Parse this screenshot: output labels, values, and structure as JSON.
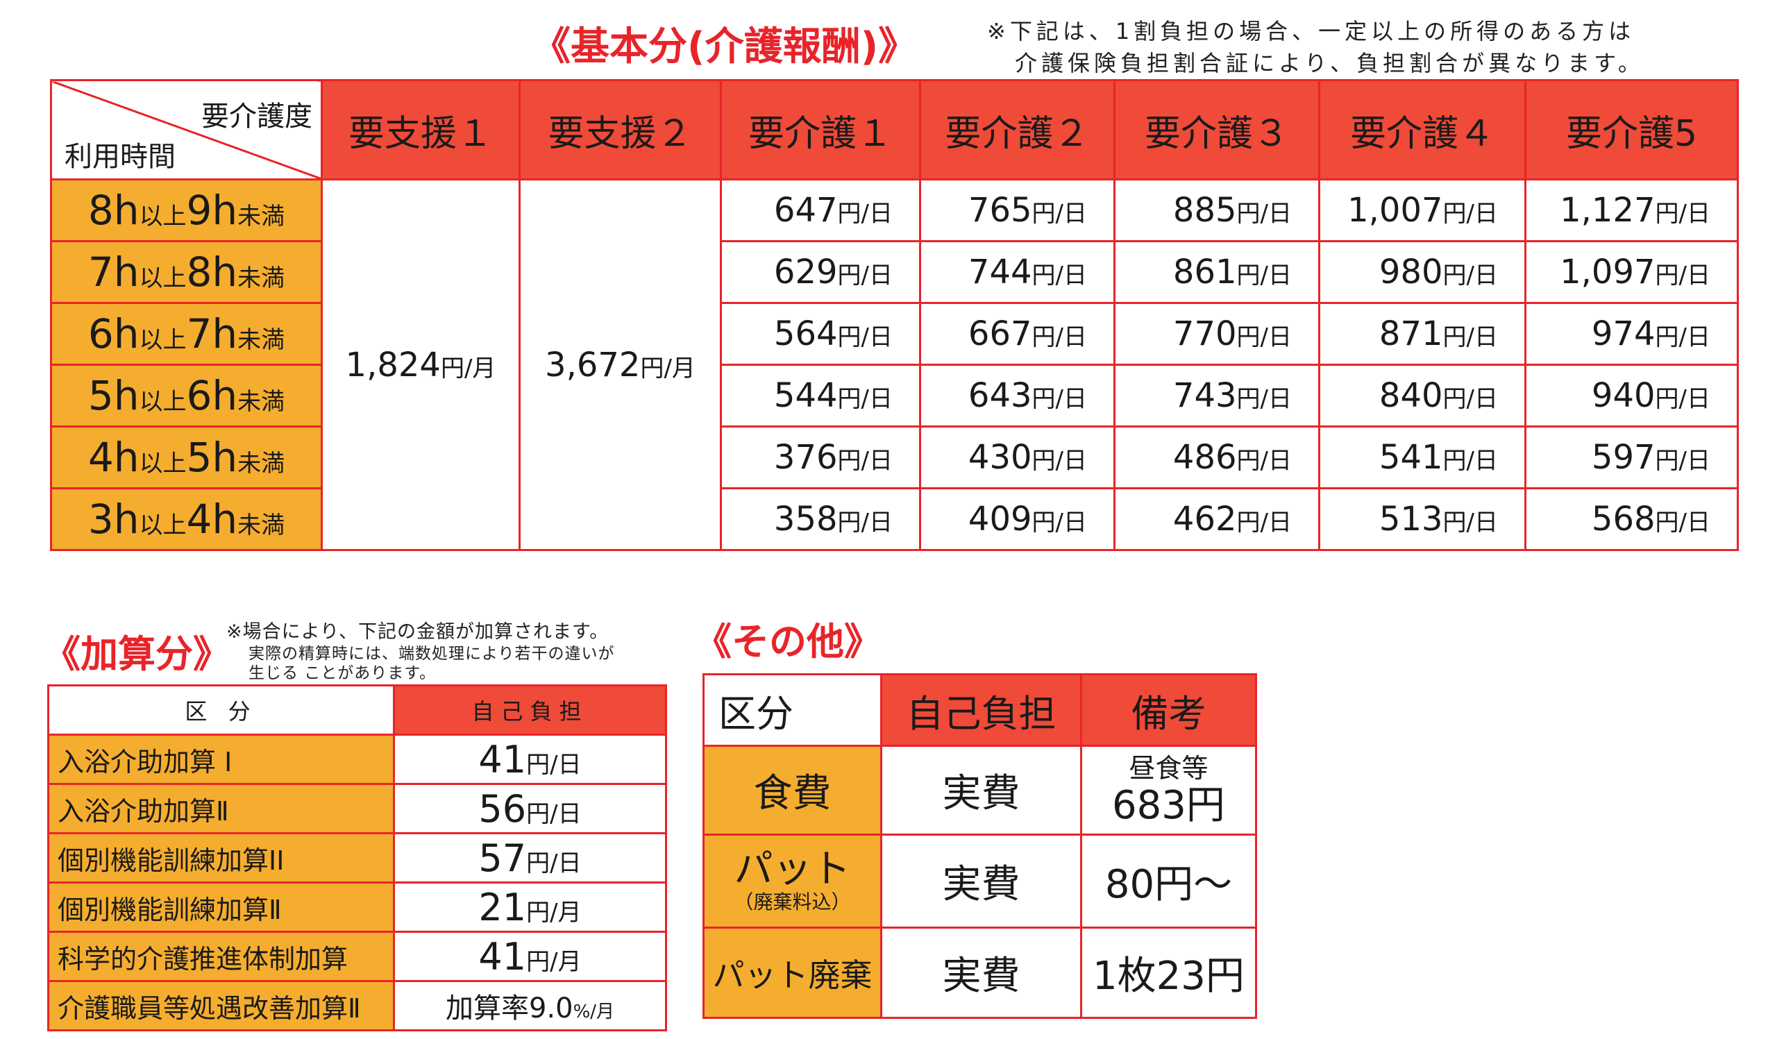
{
  "basic": {
    "title": "《基本分(介護報酬)》",
    "note_line1": "※下記は、1割負担の場合、一定以上の所得のある方は",
    "note_line2": "介護保険負担割合証により、負担割合が異なります。",
    "corner_top": "要介護度",
    "corner_bottom": "利用時間",
    "headers": [
      "要支援１",
      "要支援２",
      "要介護１",
      "要介護２",
      "要介護３",
      "要介護４",
      "要介護5"
    ],
    "support_monthly": [
      {
        "value": "1,824",
        "unit": "円/月"
      },
      {
        "value": "3,672",
        "unit": "円/月"
      }
    ],
    "rows": [
      {
        "h1": "8h",
        "mid": "以上",
        "h2": "9h",
        "end": "未満",
        "values": [
          "647",
          "765",
          "885",
          "1,007",
          "1,127"
        ]
      },
      {
        "h1": "7h",
        "mid": "以上",
        "h2": "8h",
        "end": "未満",
        "values": [
          "629",
          "744",
          "861",
          "980",
          "1,097"
        ]
      },
      {
        "h1": "6h",
        "mid": "以上",
        "h2": "7h",
        "end": "未満",
        "values": [
          "564",
          "667",
          "770",
          "871",
          "974"
        ]
      },
      {
        "h1": "5h",
        "mid": "以上",
        "h2": "6h",
        "end": "未満",
        "values": [
          "544",
          "643",
          "743",
          "840",
          "940"
        ]
      },
      {
        "h1": "4h",
        "mid": "以上",
        "h2": "5h",
        "end": "未満",
        "values": [
          "376",
          "430",
          "486",
          "541",
          "597"
        ]
      },
      {
        "h1": "3h",
        "mid": "以上",
        "h2": "4h",
        "end": "未満",
        "values": [
          "358",
          "409",
          "462",
          "513",
          "568"
        ]
      }
    ],
    "day_unit": "円/日"
  },
  "addition": {
    "title": "《加算分》",
    "note_line1": "※場合により、下記の金額が加算されます。",
    "note_line2": "実際の精算時には、端数処理により若干の違いが",
    "note_line3": "生じる ことがあります。",
    "col_category": "区 分",
    "col_self": "自己負担",
    "items": [
      {
        "name": "入浴介助加算 Ⅰ",
        "value": "41",
        "unit": "円/日"
      },
      {
        "name": "入浴介助加算Ⅱ",
        "value": "56",
        "unit": "円/日"
      },
      {
        "name": "個別機能訓練加算ⅠⅠ",
        "value": "57",
        "unit": "円/日"
      },
      {
        "name": "個別機能訓練加算Ⅱ",
        "value": "21",
        "unit": "円/月"
      },
      {
        "name": "科学的介護推進体制加算",
        "value": "41",
        "unit": "円/月"
      },
      {
        "name": "介護職員等処遇改善加算Ⅱ",
        "value": "加算率9.0",
        "unit": "%/月"
      }
    ]
  },
  "other": {
    "title": "《その他》",
    "col_category": "区分",
    "col_self": "自己負担",
    "col_remarks": "備考",
    "rows": [
      {
        "name": "食費",
        "sub": "",
        "self": "実費",
        "remark_small": "昼食等",
        "remark": "683円"
      },
      {
        "name": "パット",
        "sub": "（廃棄料込）",
        "self": "実費",
        "remark_small": "",
        "remark": "80円〜"
      },
      {
        "name": "パット廃棄",
        "sub": "",
        "self": "実費",
        "remark_small": "",
        "remark": "1枚23円"
      }
    ]
  },
  "colors": {
    "accent_red": "#e8242a",
    "header_red": "#f04a38",
    "orange": "#f5ad2f"
  }
}
